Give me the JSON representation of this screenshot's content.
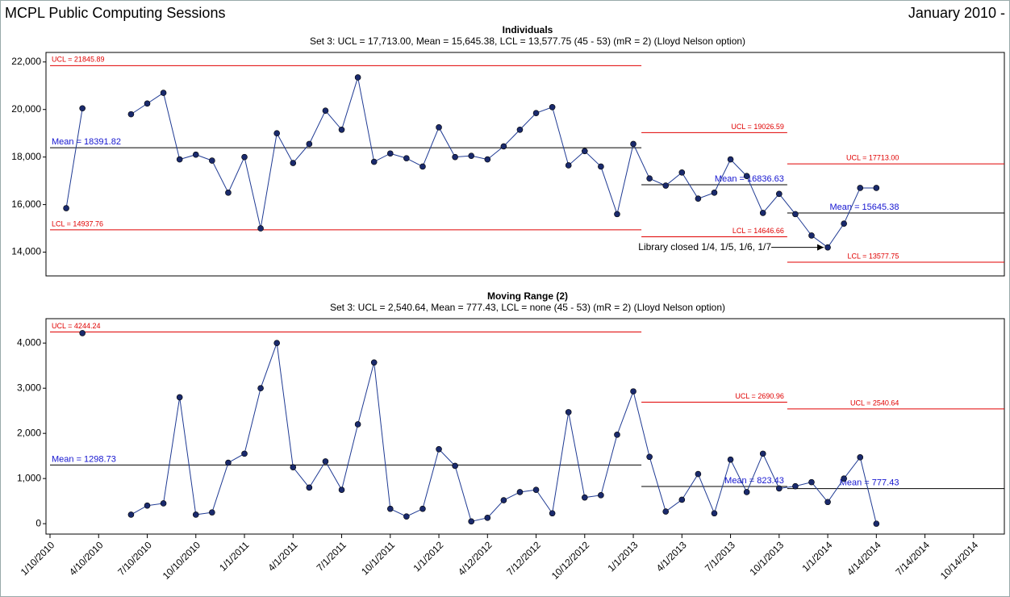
{
  "header": {
    "title": "MCPL Public Computing Sessions",
    "period": "January 2010 -"
  },
  "chart_data": [
    {
      "type": "line",
      "title": "Individuals",
      "subtitle": "Set 3: UCL = 17,713.00, Mean = 15,645.38, LCL = 13,577.75 (45 - 53) (mR = 2) (Lloyd Nelson option)",
      "annotation": "Library closed 1/4, 1/5, 1/6, 1/7",
      "color": "#1f3a93",
      "marker_color": "#1a2a6c",
      "x": [
        1,
        2,
        3,
        4,
        5,
        6,
        7,
        8,
        9,
        10,
        11,
        12,
        13,
        14,
        15,
        16,
        17,
        18,
        19,
        20,
        21,
        22,
        23,
        24,
        25,
        26,
        27,
        28,
        29,
        30,
        31,
        32,
        33,
        34,
        35,
        36,
        37,
        38,
        39,
        40,
        41,
        42,
        43,
        44,
        45,
        46,
        47,
        48,
        49,
        50,
        51
      ],
      "values": [
        15850,
        20050,
        null,
        null,
        19800,
        20250,
        20700,
        17900,
        18100,
        17850,
        16500,
        18000,
        15000,
        19000,
        17750,
        18550,
        19950,
        19150,
        21350,
        17800,
        18150,
        17950,
        17600,
        19250,
        18000,
        18050,
        17900,
        18450,
        19150,
        19850,
        20100,
        17650,
        18250,
        17600,
        15600,
        18550,
        17100,
        16800,
        17350,
        16250,
        16500,
        17900,
        17200,
        15650,
        16450,
        15600,
        14700,
        14200,
        15200,
        16700,
        16700
      ],
      "xlim": [
        0,
        58.9
      ],
      "ylim": [
        13000,
        22400
      ],
      "yticks": [
        {
          "value": 14000,
          "label": "14,000"
        },
        {
          "value": 16000,
          "label": "16,000"
        },
        {
          "value": 18000,
          "label": "18,000"
        },
        {
          "value": 20000,
          "label": "20,000"
        },
        {
          "value": 22000,
          "label": "22,000"
        }
      ],
      "limits": [
        {
          "start": 0,
          "end": 36.5,
          "ucl": 21845.89,
          "ucl_label": "UCL = 21845.89",
          "mean": 18391.82,
          "mean_label": "Mean = 18391.82",
          "lcl": 14937.76,
          "lcl_label": "LCL = 14937.76"
        },
        {
          "start": 36.5,
          "end": 45.5,
          "ucl": 19026.59,
          "ucl_label": "UCL = 19026.59",
          "mean": 16836.63,
          "mean_label": "Mean = 16836.63",
          "lcl": 14646.66,
          "lcl_label": "LCL = 14646.66"
        },
        {
          "start": 45.5,
          "end": 58.9,
          "ucl": 17713.0,
          "ucl_label": "UCL = 17713.00",
          "mean": 15645.38,
          "mean_label": "Mean = 15645.38",
          "lcl": 13577.75,
          "lcl_label": "LCL = 13577.75"
        }
      ]
    },
    {
      "type": "line",
      "title": "Moving Range (2)",
      "subtitle": "Set 3: UCL = 2,540.64, Mean = 777.43, LCL = none (45 - 53) (mR = 2) (Lloyd Nelson option)",
      "color": "#1f3a93",
      "marker_color": "#1a2a6c",
      "x": [
        1,
        2,
        3,
        4,
        5,
        6,
        7,
        8,
        9,
        10,
        11,
        12,
        13,
        14,
        15,
        16,
        17,
        18,
        19,
        20,
        21,
        22,
        23,
        24,
        25,
        26,
        27,
        28,
        29,
        30,
        31,
        32,
        33,
        34,
        35,
        36,
        37,
        38,
        39,
        40,
        41,
        42,
        43,
        44,
        45,
        46,
        47,
        48,
        49,
        50,
        51
      ],
      "values": [
        null,
        4220,
        null,
        null,
        200,
        400,
        450,
        2800,
        200,
        250,
        1350,
        1550,
        3000,
        4000,
        1250,
        800,
        1380,
        750,
        2200,
        3570,
        330,
        160,
        330,
        1650,
        1280,
        50,
        130,
        520,
        700,
        750,
        230,
        2470,
        580,
        630,
        1970,
        2930,
        1480,
        270,
        530,
        1100,
        230,
        1420,
        700,
        1550,
        780,
        830,
        920,
        480,
        1000,
        1470,
        0
      ],
      "xlim": [
        0,
        58.9
      ],
      "ylim": [
        -230,
        4540
      ],
      "yticks": [
        0,
        {
          "value": 1000,
          "label": "1,000"
        },
        {
          "value": 2000,
          "label": "2,000"
        },
        {
          "value": 3000,
          "label": "3,000"
        },
        {
          "value": 4000,
          "label": "4,000"
        }
      ],
      "xticks": [
        {
          "value": 0,
          "label": "1/10/2010"
        },
        {
          "value": 3,
          "label": "4/10/2010"
        },
        {
          "value": 6,
          "label": "7/10/2010"
        },
        {
          "value": 9,
          "label": "10/10/2010"
        },
        {
          "value": 12,
          "label": "1/1/2011"
        },
        {
          "value": 15,
          "label": "4/1/2011"
        },
        {
          "value": 18,
          "label": "7/1/2011"
        },
        {
          "value": 21,
          "label": "10/1/2011"
        },
        {
          "value": 24,
          "label": "1/1/2012"
        },
        {
          "value": 27,
          "label": "4/12/2012"
        },
        {
          "value": 30,
          "label": "7/12/2012"
        },
        {
          "value": 33,
          "label": "10/12/2012"
        },
        {
          "value": 36,
          "label": "1/1/2013"
        },
        {
          "value": 39,
          "label": "4/1/2013"
        },
        {
          "value": 42,
          "label": "7/1/2013"
        },
        {
          "value": 45,
          "label": "10/1/2013"
        },
        {
          "value": 48,
          "label": "1/1/2014"
        },
        {
          "value": 51,
          "label": "4/14/2014"
        },
        {
          "value": 54,
          "label": "7/14/2014"
        },
        {
          "value": 57,
          "label": "10/14/2014"
        }
      ],
      "limits": [
        {
          "start": 0,
          "end": 36.5,
          "ucl": 4244.24,
          "ucl_label": "UCL = 4244.24",
          "mean": 1298.73,
          "mean_label": "Mean = 1298.73"
        },
        {
          "start": 36.5,
          "end": 45.5,
          "ucl": 2690.96,
          "ucl_label": "UCL = 2690.96",
          "mean": 823.43,
          "mean_label": "Mean = 823.43"
        },
        {
          "start": 45.5,
          "end": 58.9,
          "ucl": 2540.64,
          "ucl_label": "UCL = 2540.64",
          "mean": 777.43,
          "mean_label": "Mean = 777.43"
        }
      ]
    }
  ]
}
